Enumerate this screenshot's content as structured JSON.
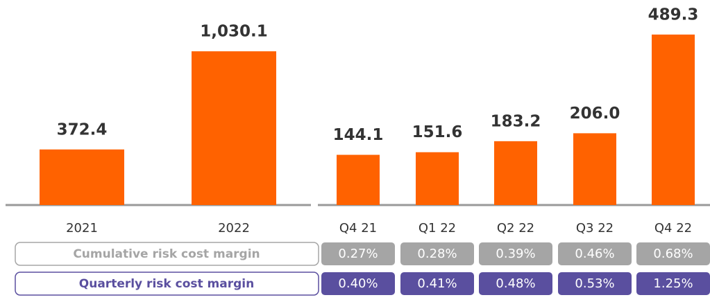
{
  "chart_data": [
    {
      "type": "bar",
      "categories": [
        "2021",
        "2022"
      ],
      "values": [
        372.4,
        1030.1
      ],
      "value_labels": [
        "372.4",
        "1,030.1"
      ],
      "color": "#ff6200",
      "ylim": [
        0,
        1100
      ]
    },
    {
      "type": "bar",
      "categories": [
        "Q4 21",
        "Q1 22",
        "Q2 22",
        "Q3 22",
        "Q4 22"
      ],
      "values": [
        144.1,
        151.6,
        183.2,
        206.0,
        489.3
      ],
      "value_labels": [
        "144.1",
        "151.6",
        "183.2",
        "206.0",
        "489.3"
      ],
      "color": "#ff6200",
      "ylim": [
        0,
        500
      ]
    }
  ],
  "margin_rows": [
    {
      "label": "Cumulative risk cost margin",
      "values": [
        "0.27%",
        "0.28%",
        "0.39%",
        "0.46%",
        "0.68%"
      ],
      "color": "#a5a5a5"
    },
    {
      "label": "Quarterly risk cost margin",
      "values": [
        "0.40%",
        "0.41%",
        "0.48%",
        "0.53%",
        "1.25%"
      ],
      "color": "#5a4f9f"
    }
  ]
}
